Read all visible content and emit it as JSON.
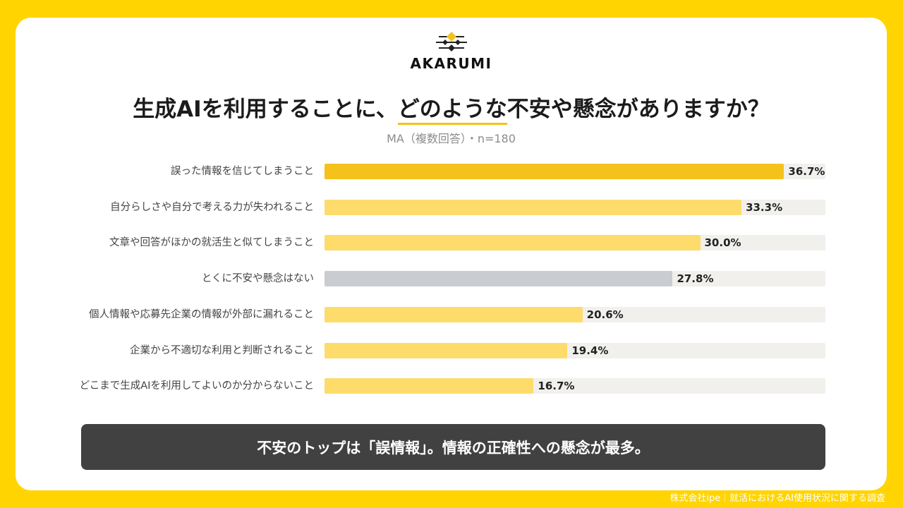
{
  "logo": {
    "text": "AKARUMI",
    "icon": "akarumi-logo-icon"
  },
  "chart_data": {
    "type": "bar",
    "orientation": "horizontal",
    "title": "生成AIを利用することに、どのような不安や懸念がありますか？",
    "title_emphasis": "どのような",
    "subtitle": "MA（複数回答）・n=180",
    "categories": [
      "誤った情報を信じてしまうこと",
      "自分らしさや自分で考える力が失われること",
      "文章や回答がほかの就活生と似てしまうこと",
      "とくに不安や懸念はない",
      "個人情報や応募先企業の情報が外部に漏れること",
      "企業から不適切な利用と判断されること",
      "どこまで生成AIを利用してよいのか分からないこと"
    ],
    "values": [
      36.7,
      33.3,
      30.0,
      27.8,
      20.6,
      19.4,
      16.7
    ],
    "value_labels": [
      "36.7%",
      "33.3%",
      "30.0%",
      "27.8%",
      "20.6%",
      "19.4%",
      "16.7%"
    ],
    "xlim": [
      0,
      40
    ],
    "grid": false,
    "bar_colors": [
      "#F4C21B",
      "#FDDC6B",
      "#FDDC6B",
      "#C9CCD1",
      "#FDDC6B",
      "#FDDC6B",
      "#FDDC6B"
    ]
  },
  "colors": {
    "background": "#FFD400",
    "accent": "#F4C21B",
    "track": "#F1F0ED",
    "summary_bg": "#414141"
  },
  "summary": {
    "text": "不安のトップは「誤情報」。情報の正確性への懸念が最多。"
  },
  "footer": {
    "text": "株式会社ipe｜就活におけるAI使用状況に関する調査"
  }
}
